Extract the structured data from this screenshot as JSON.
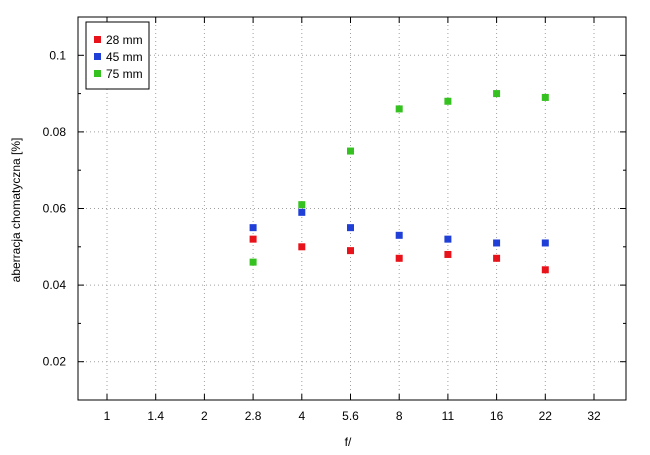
{
  "chart_data": {
    "type": "scatter",
    "title": "",
    "xlabel": "f/",
    "ylabel": "aberracja chomatyczna [%]",
    "x_categories": [
      "1",
      "1.4",
      "2",
      "2.8",
      "4",
      "5.6",
      "8",
      "11",
      "16",
      "22",
      "32"
    ],
    "y_ticks": [
      "0.02",
      "0.04",
      "0.06",
      "0.08",
      "0.1"
    ],
    "ylim": [
      0.01,
      0.11
    ],
    "grid": true,
    "legend_position": "top-left",
    "series": [
      {
        "name": "28 mm",
        "color": "#e8131a",
        "points": [
          {
            "x": "2.8",
            "y": 0.052
          },
          {
            "x": "4",
            "y": 0.05
          },
          {
            "x": "5.6",
            "y": 0.049
          },
          {
            "x": "8",
            "y": 0.047
          },
          {
            "x": "11",
            "y": 0.048
          },
          {
            "x": "16",
            "y": 0.047
          },
          {
            "x": "22",
            "y": 0.044
          }
        ]
      },
      {
        "name": "45 mm",
        "color": "#1f3fd6",
        "points": [
          {
            "x": "2.8",
            "y": 0.055
          },
          {
            "x": "4",
            "y": 0.059
          },
          {
            "x": "5.6",
            "y": 0.055
          },
          {
            "x": "8",
            "y": 0.053
          },
          {
            "x": "11",
            "y": 0.052
          },
          {
            "x": "16",
            "y": 0.051
          },
          {
            "x": "22",
            "y": 0.051
          }
        ]
      },
      {
        "name": "75 mm",
        "color": "#35c11f",
        "points": [
          {
            "x": "2.8",
            "y": 0.046
          },
          {
            "x": "4",
            "y": 0.061
          },
          {
            "x": "5.6",
            "y": 0.075
          },
          {
            "x": "8",
            "y": 0.086
          },
          {
            "x": "11",
            "y": 0.088
          },
          {
            "x": "16",
            "y": 0.09
          },
          {
            "x": "22",
            "y": 0.089
          }
        ]
      }
    ]
  }
}
